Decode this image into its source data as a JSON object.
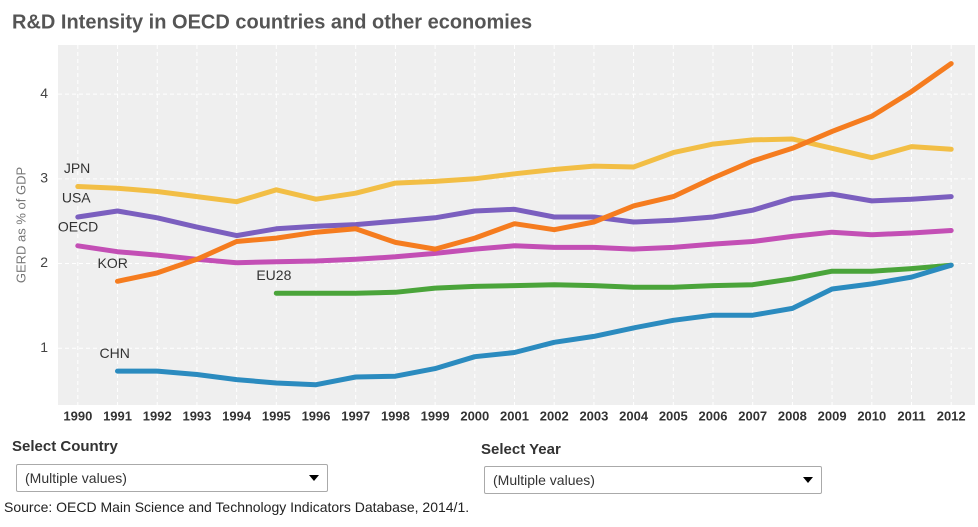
{
  "chart_data": {
    "type": "line",
    "title": "R&D Intensity in OECD countries and other economies",
    "y_label": "GERD as % of GDP",
    "x": [
      1990,
      1991,
      1992,
      1993,
      1994,
      1995,
      1996,
      1997,
      1998,
      1999,
      2000,
      2001,
      2002,
      2003,
      2004,
      2005,
      2006,
      2007,
      2008,
      2009,
      2010,
      2011,
      2012
    ],
    "xlim": [
      1989.5,
      2012.6
    ],
    "xticks": [
      1990,
      1991,
      1992,
      1993,
      1994,
      1995,
      1996,
      1997,
      1998,
      1999,
      2000,
      2001,
      2002,
      2003,
      2004,
      2005,
      2006,
      2007,
      2008,
      2009,
      2010,
      2011,
      2012
    ],
    "ylim": [
      0.33,
      4.58
    ],
    "yticks": [
      1,
      2,
      3,
      4
    ],
    "grid": true,
    "series": [
      {
        "name": "JPN",
        "color": "#f2be45",
        "values": [
          2.91,
          2.89,
          2.85,
          2.79,
          2.73,
          2.87,
          2.76,
          2.83,
          2.95,
          2.97,
          3.0,
          3.06,
          3.11,
          3.15,
          3.14,
          3.31,
          3.41,
          3.46,
          3.47,
          3.36,
          3.25,
          3.38,
          3.35
        ]
      },
      {
        "name": "USA",
        "color": "#7b5fbf",
        "values": [
          2.55,
          2.62,
          2.54,
          2.43,
          2.33,
          2.41,
          2.44,
          2.46,
          2.5,
          2.54,
          2.62,
          2.64,
          2.55,
          2.55,
          2.49,
          2.51,
          2.55,
          2.63,
          2.77,
          2.82,
          2.74,
          2.76,
          2.79
        ]
      },
      {
        "name": "OECD",
        "color": "#c34fb5",
        "values": [
          2.21,
          2.14,
          2.1,
          2.05,
          2.01,
          2.02,
          2.03,
          2.05,
          2.08,
          2.12,
          2.17,
          2.21,
          2.19,
          2.19,
          2.17,
          2.19,
          2.23,
          2.26,
          2.32,
          2.37,
          2.34,
          2.36,
          2.39
        ]
      },
      {
        "name": "KOR",
        "color": "#f57c1f",
        "values": [
          null,
          1.79,
          1.89,
          2.05,
          2.26,
          2.3,
          2.37,
          2.41,
          2.25,
          2.17,
          2.3,
          2.47,
          2.4,
          2.49,
          2.68,
          2.79,
          3.01,
          3.21,
          3.36,
          3.56,
          3.74,
          4.03,
          4.36
        ]
      },
      {
        "name": "EU28",
        "color": "#4aa43a",
        "values": [
          null,
          null,
          null,
          null,
          null,
          1.65,
          1.65,
          1.65,
          1.66,
          1.71,
          1.73,
          1.74,
          1.75,
          1.74,
          1.72,
          1.72,
          1.74,
          1.75,
          1.82,
          1.91,
          1.91,
          1.94,
          1.98
        ]
      },
      {
        "name": "CHN",
        "color": "#2b8bbf",
        "values": [
          null,
          0.73,
          0.73,
          0.69,
          0.63,
          0.59,
          0.57,
          0.66,
          0.67,
          0.76,
          0.9,
          0.95,
          1.07,
          1.14,
          1.24,
          1.33,
          1.39,
          1.39,
          1.47,
          1.7,
          1.76,
          1.84,
          1.98
        ]
      }
    ]
  },
  "controls": {
    "country_label": "Select Country",
    "country_value": "(Multiple values)",
    "year_label": "Select Year",
    "year_value": "(Multiple values)"
  },
  "source": "Source: OECD Main Science and Technology Indicators Database, 2014/1."
}
